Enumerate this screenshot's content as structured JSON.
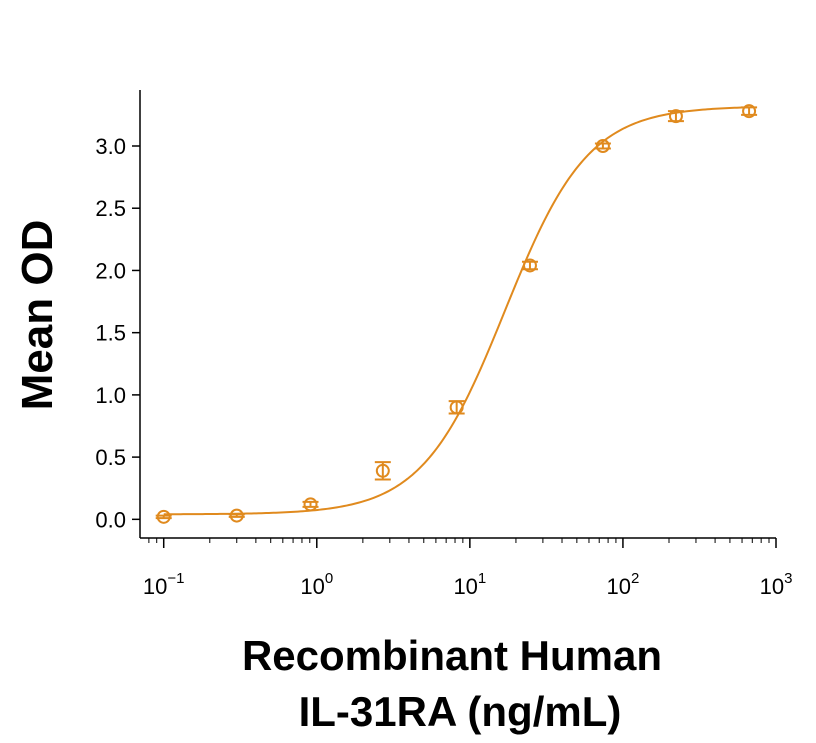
{
  "chart_data": {
    "type": "scatter",
    "title": "",
    "xlabel_lines": [
      "Recombinant Human",
      "IL-31RA (ng/mL)"
    ],
    "ylabel": "Mean OD",
    "xscale": "log",
    "xlim": [
      0.07,
      1000
    ],
    "ylim": [
      -0.15,
      3.45
    ],
    "grid": false,
    "legend": "none",
    "color": "#E08A1E",
    "x_ticks": [
      {
        "value": 0.1,
        "base": "10",
        "exp": "−1"
      },
      {
        "value": 1,
        "base": "10",
        "exp": "0"
      },
      {
        "value": 10,
        "base": "10",
        "exp": "1"
      },
      {
        "value": 100,
        "base": "10",
        "exp": "2"
      },
      {
        "value": 1000,
        "base": "10",
        "exp": "3"
      }
    ],
    "y_ticks": [
      "0.0",
      "0.5",
      "1.0",
      "1.5",
      "2.0",
      "2.5",
      "3.0"
    ],
    "series": [
      {
        "x": [
          0.1,
          0.3,
          0.91,
          2.7,
          8.2,
          24.7,
          74,
          222,
          667
        ],
        "y": [
          0.02,
          0.03,
          0.12,
          0.39,
          0.9,
          2.04,
          3.0,
          3.24,
          3.28
        ],
        "err": [
          0.01,
          0.01,
          0.02,
          0.07,
          0.05,
          0.03,
          0.02,
          0.04,
          0.03
        ]
      }
    ],
    "fit": {
      "model": "4PL",
      "bottom": 0.04,
      "top": 3.32,
      "ec50": 17,
      "hill": 1.6
    }
  }
}
